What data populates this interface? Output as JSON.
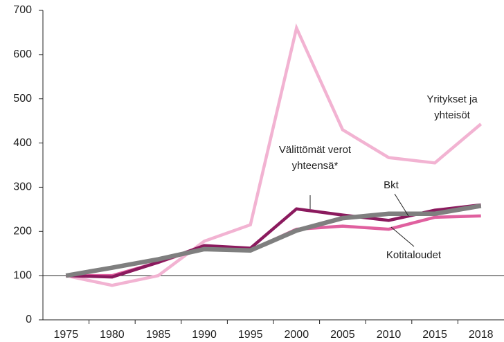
{
  "chart_data": {
    "type": "line",
    "categories": [
      "1975",
      "1980",
      "1985",
      "1990",
      "1995",
      "2000",
      "2005",
      "2010",
      "2015",
      "2018"
    ],
    "series": [
      {
        "name": "Yritykset ja yhteisöt",
        "color": "#f2b3d2",
        "values": [
          100,
          78,
          100,
          178,
          215,
          660,
          430,
          367,
          355,
          443
        ]
      },
      {
        "name": "Kotitaloudet",
        "color": "#e0609f",
        "values": [
          100,
          100,
          130,
          165,
          157,
          205,
          212,
          205,
          232,
          235
        ]
      },
      {
        "name": "Välittömät verot yhteensä*",
        "color": "#8b1a5e",
        "values": [
          100,
          97,
          130,
          168,
          162,
          251,
          237,
          225,
          248,
          260
        ]
      },
      {
        "name": "Bkt",
        "color": "#7f7f7f",
        "values": [
          100,
          118,
          137,
          160,
          157,
          202,
          230,
          240,
          240,
          258
        ]
      }
    ],
    "ylim": [
      0,
      700
    ],
    "yticks": [
      0,
      100,
      200,
      300,
      400,
      500,
      600,
      700
    ],
    "reference_line": 100
  }
}
